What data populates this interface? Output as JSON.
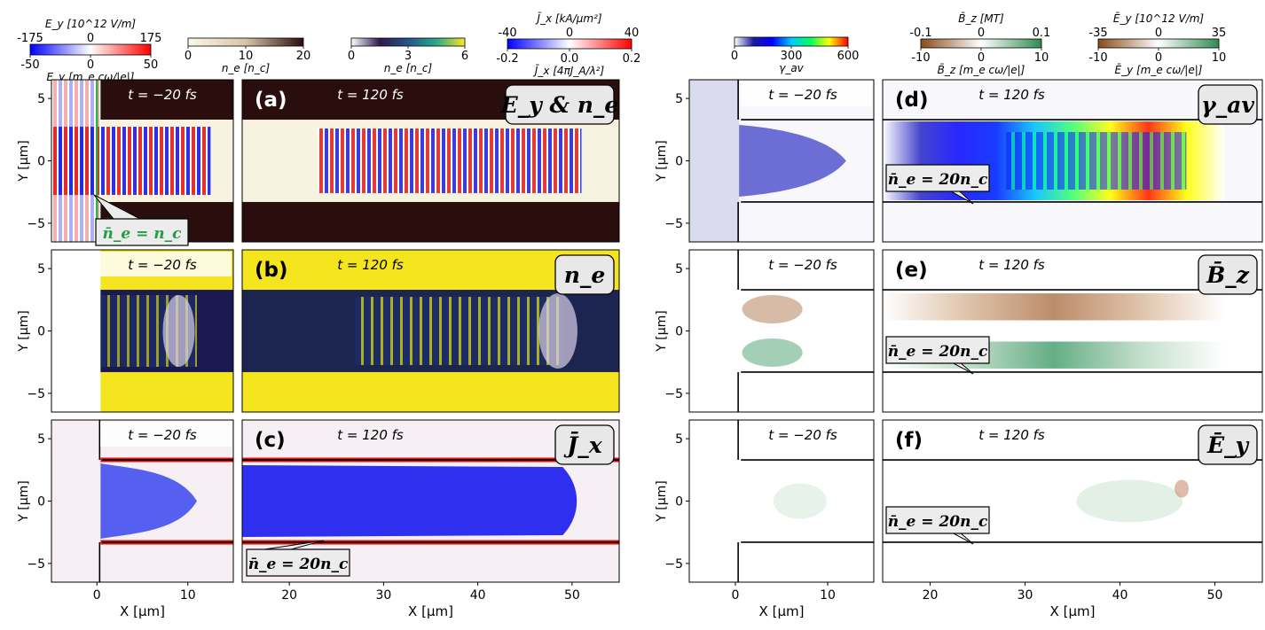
{
  "chart_data": {
    "type": "heatmap",
    "title": "",
    "colorbars": [
      {
        "id": "ey",
        "top_label": "E_y [10^12 V/m]",
        "top_ticks": [
          "-175",
          "0",
          "175"
        ],
        "bottom_ticks": [
          "-50",
          "0",
          "50"
        ],
        "bottom_label": "E_y  [m_e cω/|e|]",
        "range": [
          -50,
          50
        ],
        "colors": [
          "#0000ff",
          "#ffffff",
          "#ff0000"
        ]
      },
      {
        "id": "ne1",
        "bottom_ticks": [
          "0",
          "10",
          "20"
        ],
        "bottom_label": "n_e  [n_c]",
        "range": [
          0,
          20
        ],
        "colors": [
          "#fbf8e6",
          "#d8c4a8",
          "#2a0c0c"
        ]
      },
      {
        "id": "ne2",
        "bottom_ticks": [
          "0",
          "3",
          "6"
        ],
        "bottom_label": "n_e  [n_c]",
        "range": [
          0,
          6
        ],
        "colors": [
          "#ffffff",
          "#2d1b4a",
          "#25548a",
          "#2aa88a",
          "#fde725"
        ]
      },
      {
        "id": "jx",
        "top_label": "J̄_x [kA/μm²]",
        "top_ticks": [
          "-40",
          "0",
          "40"
        ],
        "bottom_ticks": [
          "-0.2",
          "0.0",
          "0.2"
        ],
        "bottom_label": "J̄_x [4πJ_A/λ²]",
        "range": [
          -0.2,
          0.2
        ],
        "colors": [
          "#0000ff",
          "#ffffff",
          "#ff0000"
        ]
      },
      {
        "id": "gamma",
        "bottom_ticks": [
          "0",
          "300",
          "600"
        ],
        "bottom_label": "γ_av",
        "range": [
          0,
          600
        ],
        "colors": [
          "#ffffff",
          "#1a1aa0",
          "#0000ff",
          "#00c8ff",
          "#00ff60",
          "#ffff00",
          "#ff0000"
        ]
      },
      {
        "id": "bz",
        "top_label": "B̄_z [MT]",
        "top_ticks": [
          "-0.1",
          "0",
          "0.1"
        ],
        "bottom_ticks": [
          "-10",
          "0",
          "10"
        ],
        "bottom_label": "B̄_z  [m_e cω/|e|]",
        "range": [
          -10,
          10
        ],
        "colors": [
          "#8a4a18",
          "#ffffff",
          "#2e8a50"
        ]
      },
      {
        "id": "eybar",
        "top_label": "Ē_y [10^12 V/m]",
        "top_ticks": [
          "-35",
          "0",
          "35"
        ],
        "bottom_ticks": [
          "-10",
          "0",
          "10"
        ],
        "bottom_label": "Ē_y  [m_e cω/|e|]",
        "range": [
          -10,
          10
        ],
        "colors": [
          "#8a4a18",
          "#ffffff",
          "#2e8a50"
        ]
      }
    ],
    "panels": [
      {
        "id": "a",
        "label": "(a)",
        "quantity": "E_y & n_e",
        "time_left": "t = −20 fs",
        "time_right": "t = 120 fs",
        "annotation": "n̄_e = n_c"
      },
      {
        "id": "b",
        "label": "(b)",
        "quantity": "n_e",
        "time_left": "t = −20 fs",
        "time_right": "t = 120 fs"
      },
      {
        "id": "c",
        "label": "(c)",
        "quantity": "J̄_x",
        "time_left": "t = −20 fs",
        "time_right": "t = 120 fs",
        "annotation": "n̄_e = 20n_c"
      },
      {
        "id": "d",
        "label": "(d)",
        "quantity": "γ_av",
        "time_left": "t = −20 fs",
        "time_right": "t = 120 fs",
        "annotation": "n̄_e = 20n_c"
      },
      {
        "id": "e",
        "label": "(e)",
        "quantity": "B̄_z",
        "time_left": "t = −20 fs",
        "time_right": "t = 120 fs",
        "annotation": "n̄_e = 20n_c"
      },
      {
        "id": "f",
        "label": "(f)",
        "quantity": "Ē_y",
        "time_left": "t = −20 fs",
        "time_right": "t = 120 fs",
        "annotation": "n̄_e = 20n_c"
      }
    ],
    "x_left": {
      "range": [
        -5,
        15
      ],
      "ticks": [
        "0",
        "10"
      ]
    },
    "x_right": {
      "range": [
        15,
        55
      ],
      "ticks": [
        "20",
        "30",
        "40",
        "50"
      ]
    },
    "y": {
      "range": [
        -6.5,
        6.5
      ],
      "ticks": [
        "5",
        "0",
        "−5"
      ]
    },
    "xlabel": "X  [μm]",
    "ylabel": "Y  [μm]"
  }
}
